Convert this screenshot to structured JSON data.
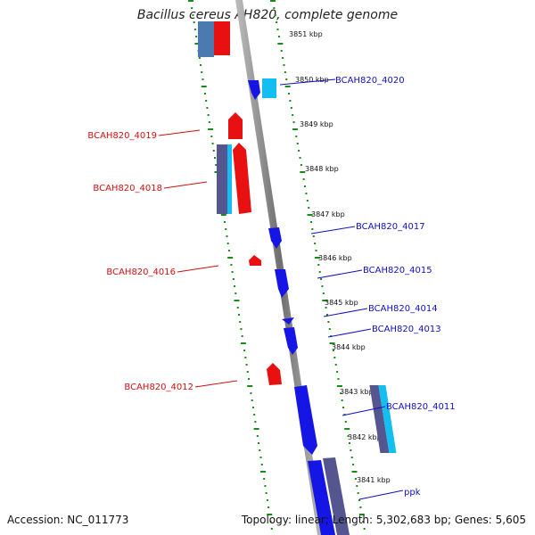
{
  "title": "Bacillus cereus AH820, complete genome",
  "footer": {
    "accession": "Accession: NC_011773",
    "summary": "Topology: linear; Length: 5,302,683 bp; Genes: 5,605"
  },
  "colors": {
    "backbone": "#8a8a8a",
    "ruler": "#1a8a1a",
    "forward_label": "#1010c0",
    "reverse_label": "#d01010",
    "forward_gene": "#1515e6",
    "reverse_gene": "#e81010",
    "cyan_gene": "#13bff0",
    "slate_gene": "#55558f",
    "steel_gene": "#4a7ab0"
  },
  "ticks": [
    {
      "kbp": 3851,
      "label": "3851 kbp"
    },
    {
      "kbp": 3850,
      "label": "3850 kbp"
    },
    {
      "kbp": 3849,
      "label": "3849 kbp"
    },
    {
      "kbp": 3848,
      "label": "3848 kbp"
    },
    {
      "kbp": 3847,
      "label": "3847 kbp"
    },
    {
      "kbp": 3846,
      "label": "3846 kbp"
    },
    {
      "kbp": 3845,
      "label": "3845 kbp"
    },
    {
      "kbp": 3844,
      "label": "3844 kbp"
    },
    {
      "kbp": 3843,
      "label": "3843 kbp"
    },
    {
      "kbp": 3842,
      "label": "3842 kbp"
    },
    {
      "kbp": 3841,
      "label": "3841 kbp"
    }
  ],
  "gene_labels": {
    "forward": [
      "BCAH820_4020",
      "BCAH820_4017",
      "BCAH820_4015",
      "BCAH820_4014",
      "BCAH820_4013",
      "BCAH820_4011",
      "ppk"
    ],
    "reverse": [
      "BCAH820_4019",
      "BCAH820_4018",
      "BCAH820_4016",
      "BCAH820_4012"
    ]
  }
}
